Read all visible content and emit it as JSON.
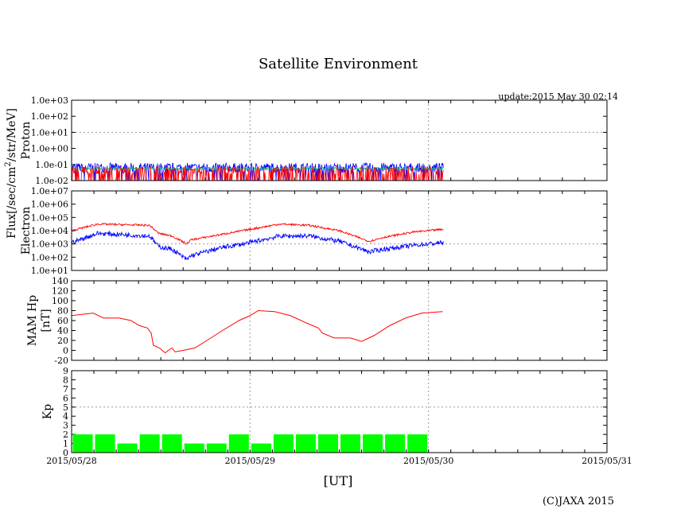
{
  "title": "Satellite Environment",
  "update": "update:2015 May 30 02:14",
  "copyright": "(C)JAXA 2015",
  "flux_label": "Flux[/sec/cm",
  "flux_sup": "2",
  "flux_label_end": "/str/MeV]",
  "xlabel": "[UT]",
  "x_ticks": [
    "2015/05/28",
    "2015/05/29",
    "2015/05/30",
    "2015/05/31"
  ],
  "colors": {
    "red": "#ff0000",
    "blue": "#0000ff",
    "green": "#00cc66",
    "kp": "#00ff00"
  },
  "chart_data": [
    {
      "type": "line",
      "name": "Proton",
      "ylabel": "Proton",
      "yscale": "log",
      "ylim_exp": [
        -2,
        3
      ],
      "y_ticks": [
        "1.0e-02",
        "1.0e-01",
        "1.0e+00",
        "1.0e+01",
        "1.0e+02",
        "1.0e+03"
      ],
      "xlim_hours": [
        0,
        72
      ],
      "data_end_hours": 50,
      "series": [
        {
          "name": "blue",
          "level": -1.2
        },
        {
          "name": "green",
          "level": -1.25
        },
        {
          "name": "red",
          "level": -1.6
        }
      ]
    },
    {
      "type": "line",
      "name": "Electron",
      "ylabel": "Electron",
      "yscale": "log",
      "ylim_exp": [
        1,
        7
      ],
      "y_ticks": [
        "1.0e+01",
        "1.0e+02",
        "1.0e+03",
        "1.0e+04",
        "1.0e+05",
        "1.0e+06",
        "1.0e+07"
      ],
      "x_hours": [
        0,
        3.5,
        10.5,
        11.7,
        13.5,
        15.5,
        16,
        20,
        24,
        28,
        32,
        36,
        40,
        42,
        46,
        50
      ],
      "series": [
        {
          "name": "red",
          "log_values": [
            4.0,
            4.5,
            4.4,
            3.8,
            3.6,
            3.0,
            3.3,
            3.7,
            4.1,
            4.5,
            4.4,
            4.0,
            3.2,
            3.5,
            3.9,
            4.1
          ]
        },
        {
          "name": "blue",
          "log_values": [
            3.1,
            3.8,
            3.6,
            2.8,
            2.6,
            1.8,
            2.1,
            2.7,
            3.1,
            3.6,
            3.6,
            3.2,
            2.4,
            2.6,
            2.9,
            3.1
          ]
        }
      ]
    },
    {
      "type": "line",
      "name": "MAM Hp",
      "ylabel": "MAM Hp",
      "ylabel2": "[nT]",
      "ylim": [
        -20,
        140
      ],
      "y_ticks": [
        "-20",
        "0",
        "20",
        "40",
        "60",
        "80",
        "100",
        "120",
        "140"
      ],
      "x_hours": [
        0,
        2.9,
        4.3,
        6.4,
        8,
        9.1,
        10.2,
        10.7,
        11,
        11.8,
        12.6,
        13,
        13.5,
        13.9,
        15,
        16.6,
        18.2,
        20.3,
        22.5,
        24,
        25.1,
        27.3,
        29.4,
        31.6,
        33.2,
        33.7,
        35.3,
        37.5,
        39,
        40.7,
        42.8,
        44.9,
        47.1,
        49.9
      ],
      "values": [
        70,
        75,
        65,
        65,
        60,
        50,
        45,
        35,
        10,
        5,
        -5,
        0,
        5,
        -3,
        0,
        5,
        20,
        40,
        60,
        70,
        80,
        78,
        70,
        55,
        45,
        35,
        25,
        25,
        18,
        30,
        50,
        65,
        75,
        78
      ]
    },
    {
      "type": "bar",
      "name": "Kp",
      "ylabel": "Kp",
      "ylim": [
        0,
        9
      ],
      "y_ticks": [
        "0",
        "1",
        "2",
        "3",
        "4",
        "5",
        "6",
        "7",
        "8",
        "9"
      ],
      "bar_width_hours": 3,
      "values": [
        2,
        2,
        1,
        2,
        2,
        1,
        1,
        2,
        1,
        2,
        2,
        2,
        2,
        2,
        2,
        2
      ]
    }
  ]
}
